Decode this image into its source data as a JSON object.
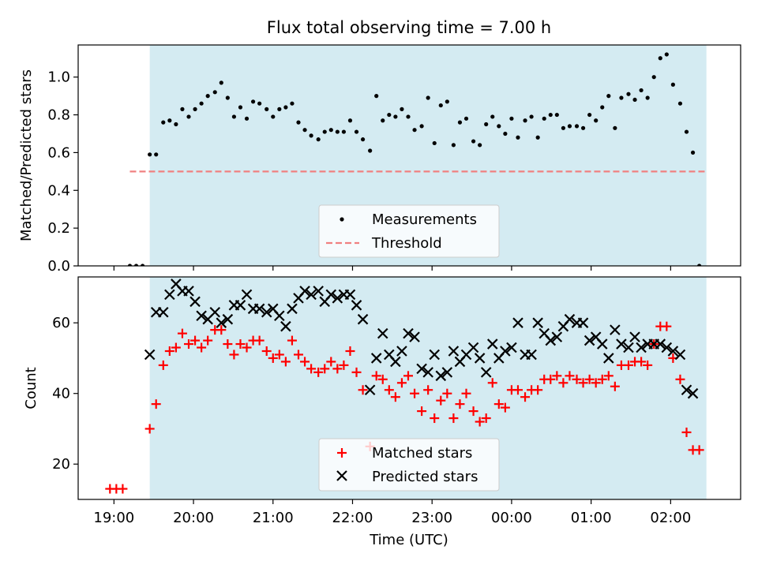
{
  "chart_data": [
    {
      "type": "scatter",
      "title": "Flux total observing time = 7.00 h",
      "ylabel": "Matched/Predicted stars",
      "xlim": [
        -0.45,
        7.88
      ],
      "ylim": [
        0.0,
        1.17
      ],
      "yticks": [
        "0.0",
        "0.2",
        "0.4",
        "0.6",
        "0.8",
        "1.0"
      ],
      "shaded_region": {
        "x_start": 0.45,
        "x_end": 7.45,
        "color": "#add8e6"
      },
      "threshold": {
        "name": "Threshold",
        "y": 0.5,
        "x_start": 0.2,
        "x_end": 7.45,
        "color": "#f08080"
      },
      "legend": {
        "placement": "lower center",
        "entries": [
          "Measurements",
          "Threshold"
        ]
      },
      "series": [
        {
          "name": "Measurements",
          "color": "#000000",
          "marker": "dot",
          "points": [
            [
              0.2,
              0.0
            ],
            [
              0.28,
              0.0
            ],
            [
              0.36,
              0.0
            ],
            [
              0.45,
              0.59
            ],
            [
              0.53,
              0.59
            ],
            [
              0.62,
              0.76
            ],
            [
              0.7,
              0.77
            ],
            [
              0.78,
              0.75
            ],
            [
              0.86,
              0.83
            ],
            [
              0.94,
              0.79
            ],
            [
              1.02,
              0.83
            ],
            [
              1.1,
              0.86
            ],
            [
              1.18,
              0.9
            ],
            [
              1.27,
              0.92
            ],
            [
              1.35,
              0.97
            ],
            [
              1.43,
              0.89
            ],
            [
              1.51,
              0.79
            ],
            [
              1.59,
              0.84
            ],
            [
              1.67,
              0.78
            ],
            [
              1.75,
              0.87
            ],
            [
              1.83,
              0.86
            ],
            [
              1.92,
              0.83
            ],
            [
              2.0,
              0.79
            ],
            [
              2.08,
              0.83
            ],
            [
              2.16,
              0.84
            ],
            [
              2.24,
              0.86
            ],
            [
              2.32,
              0.76
            ],
            [
              2.4,
              0.72
            ],
            [
              2.48,
              0.69
            ],
            [
              2.57,
              0.67
            ],
            [
              2.65,
              0.71
            ],
            [
              2.73,
              0.72
            ],
            [
              2.81,
              0.71
            ],
            [
              2.89,
              0.71
            ],
            [
              2.97,
              0.77
            ],
            [
              3.05,
              0.71
            ],
            [
              3.13,
              0.67
            ],
            [
              3.22,
              0.61
            ],
            [
              3.3,
              0.9
            ],
            [
              3.38,
              0.77
            ],
            [
              3.46,
              0.8
            ],
            [
              3.54,
              0.79
            ],
            [
              3.62,
              0.83
            ],
            [
              3.7,
              0.79
            ],
            [
              3.78,
              0.72
            ],
            [
              3.87,
              0.74
            ],
            [
              3.95,
              0.89
            ],
            [
              4.03,
              0.65
            ],
            [
              4.11,
              0.85
            ],
            [
              4.19,
              0.87
            ],
            [
              4.27,
              0.64
            ],
            [
              4.35,
              0.76
            ],
            [
              4.43,
              0.78
            ],
            [
              4.52,
              0.66
            ],
            [
              4.6,
              0.64
            ],
            [
              4.68,
              0.75
            ],
            [
              4.76,
              0.79
            ],
            [
              4.84,
              0.74
            ],
            [
              4.92,
              0.7
            ],
            [
              5.0,
              0.78
            ],
            [
              5.08,
              0.68
            ],
            [
              5.17,
              0.77
            ],
            [
              5.25,
              0.79
            ],
            [
              5.33,
              0.68
            ],
            [
              5.41,
              0.78
            ],
            [
              5.49,
              0.8
            ],
            [
              5.57,
              0.8
            ],
            [
              5.65,
              0.73
            ],
            [
              5.73,
              0.74
            ],
            [
              5.82,
              0.74
            ],
            [
              5.9,
              0.73
            ],
            [
              5.98,
              0.8
            ],
            [
              6.06,
              0.77
            ],
            [
              6.14,
              0.84
            ],
            [
              6.22,
              0.9
            ],
            [
              6.3,
              0.73
            ],
            [
              6.38,
              0.89
            ],
            [
              6.47,
              0.91
            ],
            [
              6.55,
              0.88
            ],
            [
              6.63,
              0.93
            ],
            [
              6.71,
              0.89
            ],
            [
              6.79,
              1.0
            ],
            [
              6.87,
              1.1
            ],
            [
              6.95,
              1.12
            ],
            [
              7.03,
              0.96
            ],
            [
              7.12,
              0.86
            ],
            [
              7.2,
              0.71
            ],
            [
              7.28,
              0.6
            ],
            [
              7.36,
              0.0
            ]
          ]
        }
      ]
    },
    {
      "type": "scatter",
      "xlabel": "Time (UTC)",
      "ylabel": "Count",
      "xlim": [
        -0.45,
        7.88
      ],
      "ylim": [
        10,
        73
      ],
      "xticks": [
        "19:00",
        "20:00",
        "21:00",
        "22:00",
        "23:00",
        "00:00",
        "01:00",
        "02:00"
      ],
      "yticks": [
        "20",
        "40",
        "60"
      ],
      "shaded_region": {
        "x_start": 0.45,
        "x_end": 7.45,
        "color": "#add8e6"
      },
      "legend": {
        "placement": "lower center",
        "entries": [
          "Matched stars",
          "Predicted stars"
        ]
      },
      "series": [
        {
          "name": "Matched stars",
          "color": "#ff0000",
          "marker": "plus",
          "points": [
            [
              -0.05,
              13
            ],
            [
              0.03,
              13
            ],
            [
              0.11,
              13
            ],
            [
              0.45,
              30
            ],
            [
              0.53,
              37
            ],
            [
              0.62,
              48
            ],
            [
              0.7,
              52
            ],
            [
              0.78,
              53
            ],
            [
              0.86,
              57
            ],
            [
              0.94,
              54
            ],
            [
              1.02,
              55
            ],
            [
              1.1,
              53
            ],
            [
              1.18,
              55
            ],
            [
              1.27,
              58
            ],
            [
              1.35,
              58
            ],
            [
              1.43,
              54
            ],
            [
              1.51,
              51
            ],
            [
              1.59,
              54
            ],
            [
              1.67,
              53
            ],
            [
              1.75,
              55
            ],
            [
              1.83,
              55
            ],
            [
              1.92,
              52
            ],
            [
              2.0,
              50
            ],
            [
              2.08,
              51
            ],
            [
              2.16,
              49
            ],
            [
              2.24,
              55
            ],
            [
              2.32,
              51
            ],
            [
              2.4,
              49
            ],
            [
              2.48,
              47
            ],
            [
              2.57,
              46
            ],
            [
              2.65,
              47
            ],
            [
              2.73,
              49
            ],
            [
              2.81,
              47
            ],
            [
              2.89,
              48
            ],
            [
              2.97,
              52
            ],
            [
              3.05,
              46
            ],
            [
              3.13,
              41
            ],
            [
              3.22,
              25
            ],
            [
              3.3,
              45
            ],
            [
              3.38,
              44
            ],
            [
              3.46,
              41
            ],
            [
              3.54,
              39
            ],
            [
              3.62,
              43
            ],
            [
              3.7,
              45
            ],
            [
              3.78,
              40
            ],
            [
              3.87,
              35
            ],
            [
              3.95,
              41
            ],
            [
              4.03,
              33
            ],
            [
              4.11,
              38
            ],
            [
              4.19,
              40
            ],
            [
              4.27,
              33
            ],
            [
              4.35,
              37
            ],
            [
              4.43,
              40
            ],
            [
              4.52,
              35
            ],
            [
              4.6,
              32
            ],
            [
              4.68,
              33
            ],
            [
              4.76,
              43
            ],
            [
              4.84,
              37
            ],
            [
              4.92,
              36
            ],
            [
              5.0,
              41
            ],
            [
              5.08,
              41
            ],
            [
              5.17,
              39
            ],
            [
              5.25,
              41
            ],
            [
              5.33,
              41
            ],
            [
              5.41,
              44
            ],
            [
              5.49,
              44
            ],
            [
              5.57,
              45
            ],
            [
              5.65,
              43
            ],
            [
              5.73,
              45
            ],
            [
              5.82,
              44
            ],
            [
              5.9,
              43
            ],
            [
              5.98,
              44
            ],
            [
              6.06,
              43
            ],
            [
              6.14,
              44
            ],
            [
              6.22,
              45
            ],
            [
              6.3,
              42
            ],
            [
              6.38,
              48
            ],
            [
              6.47,
              48
            ],
            [
              6.55,
              49
            ],
            [
              6.63,
              49
            ],
            [
              6.71,
              48
            ],
            [
              6.79,
              54
            ],
            [
              6.87,
              59
            ],
            [
              6.95,
              59
            ],
            [
              7.03,
              50
            ],
            [
              7.12,
              44
            ],
            [
              7.2,
              29
            ],
            [
              7.28,
              24
            ],
            [
              7.36,
              24
            ]
          ]
        },
        {
          "name": "Predicted stars",
          "color": "#000000",
          "marker": "x",
          "points": [
            [
              0.45,
              51
            ],
            [
              0.53,
              63
            ],
            [
              0.62,
              63
            ],
            [
              0.7,
              68
            ],
            [
              0.78,
              71
            ],
            [
              0.86,
              69
            ],
            [
              0.94,
              69
            ],
            [
              1.02,
              66
            ],
            [
              1.1,
              62
            ],
            [
              1.18,
              61
            ],
            [
              1.27,
              63
            ],
            [
              1.35,
              60
            ],
            [
              1.43,
              61
            ],
            [
              1.51,
              65
            ],
            [
              1.59,
              65
            ],
            [
              1.67,
              68
            ],
            [
              1.75,
              64
            ],
            [
              1.83,
              64
            ],
            [
              1.92,
              63
            ],
            [
              2.0,
              64
            ],
            [
              2.08,
              62
            ],
            [
              2.16,
              59
            ],
            [
              2.24,
              64
            ],
            [
              2.32,
              67
            ],
            [
              2.4,
              69
            ],
            [
              2.48,
              68
            ],
            [
              2.57,
              69
            ],
            [
              2.65,
              66
            ],
            [
              2.73,
              68
            ],
            [
              2.81,
              67
            ],
            [
              2.89,
              68
            ],
            [
              2.97,
              68
            ],
            [
              3.05,
              65
            ],
            [
              3.13,
              61
            ],
            [
              3.22,
              41
            ],
            [
              3.3,
              50
            ],
            [
              3.38,
              57
            ],
            [
              3.46,
              51
            ],
            [
              3.54,
              49
            ],
            [
              3.62,
              52
            ],
            [
              3.7,
              57
            ],
            [
              3.78,
              56
            ],
            [
              3.87,
              47
            ],
            [
              3.95,
              46
            ],
            [
              4.03,
              51
            ],
            [
              4.11,
              45
            ],
            [
              4.19,
              46
            ],
            [
              4.27,
              52
            ],
            [
              4.35,
              49
            ],
            [
              4.43,
              51
            ],
            [
              4.52,
              53
            ],
            [
              4.6,
              50
            ],
            [
              4.68,
              46
            ],
            [
              4.76,
              54
            ],
            [
              4.84,
              50
            ],
            [
              4.92,
              52
            ],
            [
              5.0,
              53
            ],
            [
              5.08,
              60
            ],
            [
              5.17,
              51
            ],
            [
              5.25,
              51
            ],
            [
              5.33,
              60
            ],
            [
              5.41,
              57
            ],
            [
              5.49,
              55
            ],
            [
              5.57,
              56
            ],
            [
              5.65,
              59
            ],
            [
              5.73,
              61
            ],
            [
              5.82,
              60
            ],
            [
              5.9,
              60
            ],
            [
              5.98,
              55
            ],
            [
              6.06,
              56
            ],
            [
              6.14,
              54
            ],
            [
              6.22,
              50
            ],
            [
              6.3,
              58
            ],
            [
              6.38,
              54
            ],
            [
              6.47,
              53
            ],
            [
              6.55,
              56
            ],
            [
              6.63,
              53
            ],
            [
              6.71,
              54
            ],
            [
              6.79,
              54
            ],
            [
              6.87,
              54
            ],
            [
              6.95,
              53
            ],
            [
              7.03,
              52
            ],
            [
              7.12,
              51
            ],
            [
              7.2,
              41
            ],
            [
              7.28,
              40
            ]
          ]
        }
      ]
    }
  ]
}
